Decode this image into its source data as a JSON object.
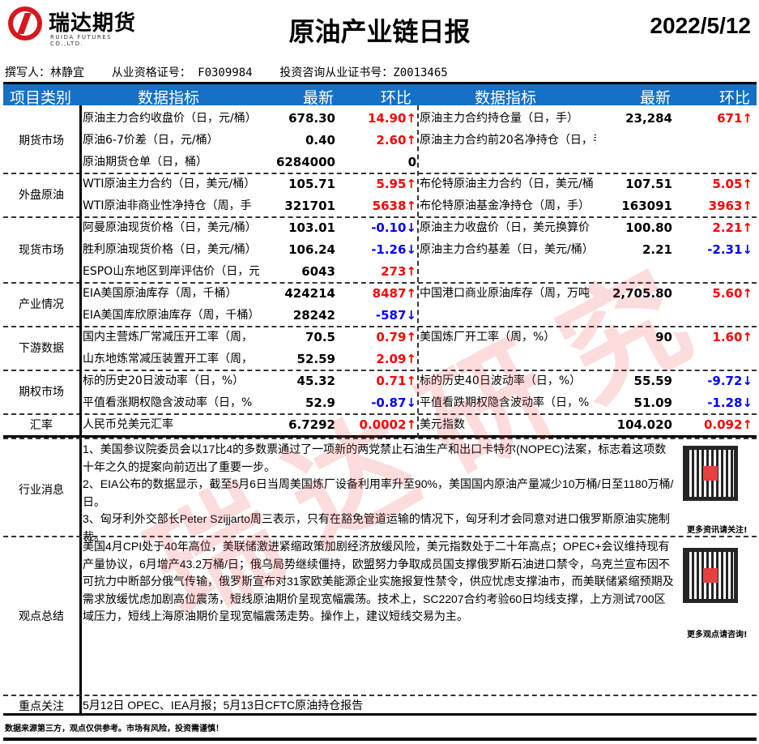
{
  "header": {
    "logo_cn": "瑞达期货",
    "logo_en": "RUIDA FUTURES CO.,LTD.",
    "title": "原油产业链日报",
    "date": "2022/5/12"
  },
  "author_line": "撰写人：林静宜    从业资格证号： F0309984    投资咨询从业证书号：Z0013465",
  "columns": [
    "项目类别",
    "数据指标",
    "最新",
    "环比",
    "数据指标",
    "最新",
    "环比"
  ],
  "colors": {
    "header_bg": "#1570c6",
    "up": "#ff0000",
    "down": "#0000ff"
  },
  "sections": [
    {
      "category": "期货市场",
      "rows": [
        {
          "l": {
            "name": "原油主力合约收盘价（日，元/桶）",
            "value": "678.30",
            "change": "14.90↑",
            "dir": "up"
          },
          "r": {
            "name": "原油主力合约持仓量（日，手）",
            "value": "23,284",
            "change": "671↑",
            "dir": "up"
          }
        },
        {
          "l": {
            "name": "原油6-7价差（日，元/桶）",
            "value": "0.40",
            "change": "2.60↑",
            "dir": "up"
          },
          "r": {
            "name": "原油主力合约前20名净持仓（日，手）",
            "value": "",
            "change": "",
            "dir": "flat"
          }
        },
        {
          "l": {
            "name": "原油期货仓单（日，桶）",
            "value": "6284000",
            "change": "0",
            "dir": "flat"
          },
          "r": {
            "name": "",
            "value": "",
            "change": "",
            "dir": "flat"
          }
        }
      ]
    },
    {
      "category": "外盘原油",
      "rows": [
        {
          "l": {
            "name": "WTI原油主力合约（日，美元/桶）",
            "value": "105.71",
            "change": "5.95↑",
            "dir": "up"
          },
          "r": {
            "name": "布伦特原油主力合约（日，美元/桶",
            "value": "107.51",
            "change": "5.05↑",
            "dir": "up"
          }
        },
        {
          "l": {
            "name": " WTI原油非商业性净持仓（周，手",
            "value": "321701",
            "change": "5638↑",
            "dir": "up"
          },
          "r": {
            "name": "布伦特原油基金净持仓（周，手）",
            "value": "163091",
            "change": "3963↑",
            "dir": "up"
          }
        }
      ]
    },
    {
      "category": "现货市场",
      "rows": [
        {
          "l": {
            "name": "阿曼原油现货价格（日，美元/桶）",
            "value": "103.01",
            "change": "-0.10↓",
            "dir": "down"
          },
          "r": {
            "name": "原油主力收盘价（日，美元换算价",
            "value": "100.80",
            "change": "2.21↑",
            "dir": "up"
          }
        },
        {
          "l": {
            "name": "胜利原油现货价格（日，美元/桶）",
            "value": "106.24",
            "change": "-1.26↓",
            "dir": "down"
          },
          "r": {
            "name": "原油主力合约基差（日，美元/桶）",
            "value": "2.21",
            "change": "-2.31↓",
            "dir": "down"
          }
        },
        {
          "l": {
            "name": "ESPO山东地区到岸评估价（日，元",
            "value": "6043",
            "change": "273↑",
            "dir": "up"
          },
          "r": {
            "name": "",
            "value": "",
            "change": "",
            "dir": "flat"
          }
        }
      ]
    },
    {
      "category": "产业情况",
      "rows": [
        {
          "l": {
            "name": "EIA美国原油库存（周，千桶）",
            "value": "424214",
            "change": "8487↑",
            "dir": "up"
          },
          "r": {
            "name": "中国港口商业原油库存（周，万吨",
            "value": "2,705.80",
            "change": "5.60↑",
            "dir": "up"
          }
        },
        {
          "l": {
            "name": "EIA美国库欣原油库存（周，千桶）",
            "value": "28242",
            "change": "-587↓",
            "dir": "down"
          },
          "r": {
            "name": "",
            "value": "",
            "change": "",
            "dir": "flat"
          }
        }
      ]
    },
    {
      "category": "下游数据",
      "rows": [
        {
          "l": {
            "name": "国内主营炼厂常减压开工率（周，",
            "value": "70.5",
            "change": "0.79↑",
            "dir": "up"
          },
          "r": {
            "name": "美国炼厂开工率（周，%）",
            "value": "90",
            "change": "1.60↑",
            "dir": "up"
          }
        },
        {
          "l": {
            "name": "山东地炼常减压装置开工率（周，",
            "value": "52.59",
            "change": "2.09↑",
            "dir": "up"
          },
          "r": {
            "name": "",
            "value": "",
            "change": "",
            "dir": "flat"
          }
        }
      ]
    },
    {
      "category": "期权市场",
      "rows": [
        {
          "l": {
            "name": "标的历史20日波动率（日，%）",
            "value": "45.32",
            "change": "0.71↑",
            "dir": "up"
          },
          "r": {
            "name": "标的历史40日波动率（日，%）",
            "value": "55.59",
            "change": "-9.72↓",
            "dir": "down"
          }
        },
        {
          "l": {
            "name": "平值看涨期权隐含波动率（日，%",
            "value": "52.9",
            "change": "-0.87↓",
            "dir": "down"
          },
          "r": {
            "name": "平值看跌期权隐含波动率（日，%",
            "value": "51.09",
            "change": "-1.28↓",
            "dir": "down"
          }
        }
      ]
    },
    {
      "category": "汇率",
      "rows": [
        {
          "l": {
            "name": "人民币兑美元汇率",
            "value": "6.7292",
            "change": "0.0002↑",
            "dir": "up"
          },
          "r": {
            "name": "美元指数",
            "value": "104.020",
            "change": "0.092↑",
            "dir": "up"
          }
        }
      ]
    }
  ],
  "news": {
    "category": "行业消息",
    "text": "1、美国参议院委员会以17比4的多数票通过了一项新的两党禁止石油生产和出口卡特尔(NOPEC)法案，标志着这项数十年之久的提案向前迈出了重要一步。\n2、EIA公布的数据显示，截至5月6日当周美国炼厂设备利用率升至90%，美国国内原油产量减少10万桶/日至1180万桶/日。\n3、匈牙利外交部长Peter Szijjarto周三表示，只有在豁免管道运输的情况下，匈牙利才会同意对进口俄罗斯原油实施制裁。",
    "qr_caption": "更多资讯请关注!"
  },
  "view": {
    "category": "观点总结",
    "text": "美国4月CPI处于40年高位，美联储激进紧缩政策加剧经济放缓风险，美元指数处于二十年高点；OPEC+会议维持现有产量协议，6月增产43.2万桶/日；俄乌局势继续僵持，欧盟努力争取成员国支撑俄罗斯石油进口禁令，乌克兰宣布因不可抗力中断部分俄气传输，俄罗斯宣布对31家欧美能源企业实施报复性禁令，供应忧虑支撑油市，而美联储紧缩预期及需求放缓忧虑加剧高位震荡，短线原油期价呈现宽幅震荡。技术上，SC2207合约考验60日均线支撑，上方测试700区域压力，短线上海原油期价呈现宽幅震荡走势。操作上，建议短线交易为主。",
    "qr_caption": "更多观点请咨询!"
  },
  "focus": {
    "category": "重点关注",
    "text": "5月12日 OPEC、IEA月报；5月13日CFTC原油持仓报告"
  },
  "footer": "数据来源第三方，观点仅供参考。市场有风险，投资需谨慎！",
  "watermark": "瑞达研究"
}
